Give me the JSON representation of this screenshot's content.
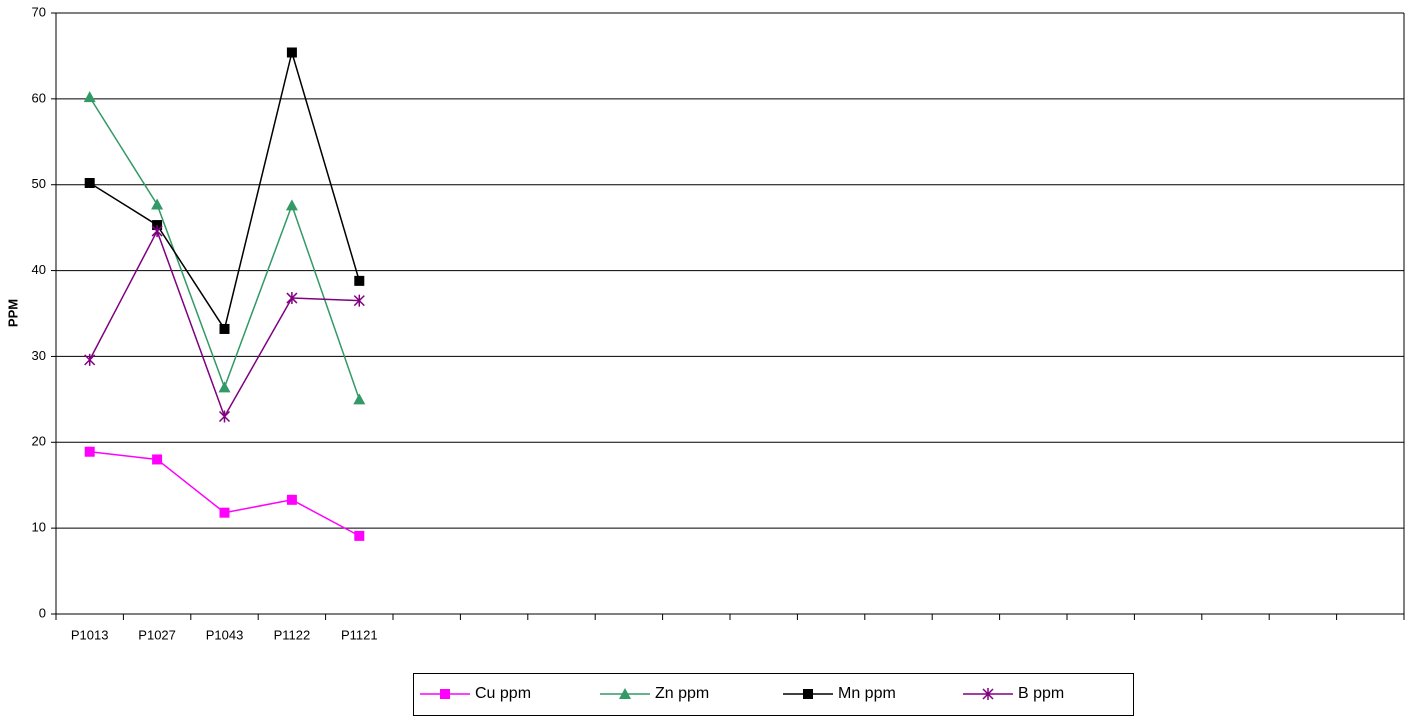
{
  "chart_data": {
    "type": "line",
    "y_label": "PPM",
    "categories": [
      "P1013",
      "P1027",
      "P1043",
      "P1122",
      "P1121",
      null,
      null,
      null,
      null,
      null,
      null,
      null,
      null,
      null,
      null,
      null,
      null,
      null,
      null,
      null
    ],
    "series": [
      {
        "name": "Cu ppm",
        "color": "#ff00ff",
        "marker": "square",
        "values": [
          18.9,
          18.0,
          11.8,
          13.3,
          9.1,
          null,
          null,
          null,
          null,
          null,
          null,
          null,
          null,
          null,
          null,
          null,
          null,
          null,
          null,
          null
        ]
      },
      {
        "name": "Zn ppm",
        "color": "#339966",
        "marker": "triangle",
        "values": [
          60.2,
          47.7,
          26.4,
          47.6,
          25.0,
          null,
          null,
          null,
          null,
          null,
          null,
          null,
          null,
          null,
          null,
          null,
          null,
          null,
          null,
          null
        ]
      },
      {
        "name": "Mn ppm",
        "color": "#000000",
        "marker": "square",
        "values": [
          50.2,
          45.3,
          33.2,
          65.4,
          38.8,
          null,
          null,
          null,
          null,
          null,
          null,
          null,
          null,
          null,
          null,
          null,
          null,
          null,
          null,
          null
        ]
      },
      {
        "name": "B ppm",
        "color": "#800080",
        "marker": "star",
        "values": [
          29.6,
          44.6,
          23.0,
          36.8,
          36.5,
          null,
          null,
          null,
          null,
          null,
          null,
          null,
          null,
          null,
          null,
          null,
          null,
          null,
          null,
          null
        ]
      }
    ],
    "ylim": [
      0,
      70
    ],
    "yticks": [
      0,
      10,
      20,
      30,
      40,
      50,
      60,
      70
    ],
    "grid": true,
    "legend": "bottom"
  }
}
